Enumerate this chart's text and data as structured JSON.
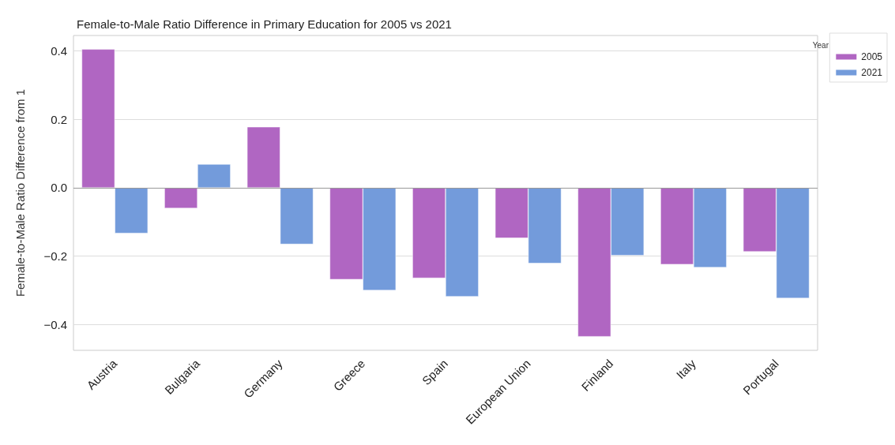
{
  "chart_data": {
    "type": "bar",
    "title": "Female-to-Male Ratio Difference in Primary Education for 2005 vs 2021",
    "ylabel": "Female-to-Male Ratio Difference from 1",
    "legend_title": "Year",
    "categories": [
      "Austria",
      "Bulgaria",
      "Germany",
      "Greece",
      "Spain",
      "European Union",
      "Finland",
      "Italy",
      "Portugal"
    ],
    "series": [
      {
        "name": "2005",
        "color": "#b066c2",
        "values": [
          0.405,
          -0.06,
          0.178,
          -0.268,
          -0.264,
          -0.147,
          -0.435,
          -0.224,
          -0.187
        ]
      },
      {
        "name": "2021",
        "color": "#739bdb",
        "values": [
          -0.133,
          0.069,
          -0.165,
          -0.3,
          -0.318,
          -0.221,
          -0.198,
          -0.233,
          -0.323
        ]
      }
    ],
    "ylim": [
      -0.475,
      0.445
    ],
    "yticks": [
      {
        "value": -0.4,
        "label": "−0.4"
      },
      {
        "value": -0.2,
        "label": "−0.2"
      },
      {
        "value": 0,
        "label": "0.0"
      },
      {
        "value": 0.2,
        "label": "0.2"
      },
      {
        "value": 0.4,
        "label": "0.4"
      }
    ],
    "grid": "y",
    "legend": "top right"
  }
}
